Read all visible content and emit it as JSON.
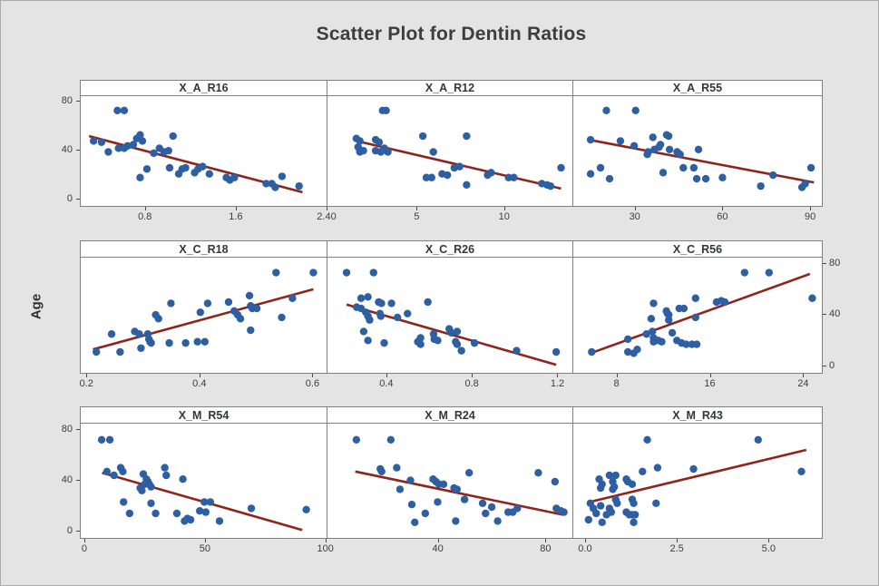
{
  "window": {
    "background": "#e4e4e4",
    "border_color": "#ababab"
  },
  "title": "Scatter Plot for Dentin Ratios",
  "y_axis_label": "Age",
  "colors": {
    "point": "#2e5fa3",
    "fit_line": "#8e241c",
    "panel_background": "#ffffff",
    "panel_border": "#808080",
    "title_text": "#3d3d3d",
    "tick_text": "#3d3d3d"
  },
  "y_axis": {
    "ticks": [
      0,
      40,
      80
    ],
    "range": [
      -6,
      84
    ],
    "sides_by_row": [
      "left",
      "right",
      "left"
    ]
  },
  "chart_data": [
    {
      "type": "scatter",
      "title": "X_A_R16",
      "ylabel": "Age",
      "x_range": [
        0.235,
        2.4
      ],
      "x_ticks": [
        {
          "v": 0.8,
          "label": "0.8"
        },
        {
          "v": 1.6,
          "label": "1.6"
        },
        {
          "v": 2.4,
          "label": "2.40"
        }
      ],
      "points": [
        [
          0.55,
          73
        ],
        [
          0.61,
          73
        ],
        [
          0.34,
          48
        ],
        [
          0.41,
          47
        ],
        [
          0.47,
          39
        ],
        [
          0.56,
          42
        ],
        [
          0.61,
          42
        ],
        [
          0.64,
          44
        ],
        [
          0.69,
          45
        ],
        [
          0.72,
          50
        ],
        [
          0.75,
          53
        ],
        [
          0.77,
          48
        ],
        [
          0.87,
          38
        ],
        [
          0.92,
          42
        ],
        [
          0.96,
          39
        ],
        [
          1.0,
          40
        ],
        [
          1.04,
          52
        ],
        [
          0.75,
          18
        ],
        [
          0.81,
          25
        ],
        [
          1.01,
          26
        ],
        [
          1.09,
          21
        ],
        [
          1.12,
          25
        ],
        [
          1.15,
          26
        ],
        [
          1.23,
          22
        ],
        [
          1.26,
          25
        ],
        [
          1.3,
          27
        ],
        [
          1.36,
          21
        ],
        [
          1.51,
          18
        ],
        [
          1.54,
          16
        ],
        [
          1.58,
          18
        ],
        [
          1.86,
          13
        ],
        [
          1.91,
          13
        ],
        [
          1.94,
          10
        ],
        [
          2.0,
          19
        ],
        [
          2.15,
          11
        ]
      ],
      "fit_line": [
        [
          0.3,
          52
        ],
        [
          2.18,
          6
        ]
      ]
    },
    {
      "type": "scatter",
      "title": "X_A_R12",
      "ylabel": "Age",
      "x_range": [
        -0.1,
        13.9
      ],
      "x_ticks": [
        {
          "v": 5,
          "label": "5"
        },
        {
          "v": 10,
          "label": "10"
        }
      ],
      "points": [
        [
          3.0,
          73
        ],
        [
          3.2,
          73
        ],
        [
          1.5,
          50
        ],
        [
          1.7,
          48
        ],
        [
          1.6,
          43
        ],
        [
          1.7,
          39
        ],
        [
          1.9,
          40
        ],
        [
          2.6,
          49
        ],
        [
          2.8,
          47
        ],
        [
          2.6,
          40
        ],
        [
          2.9,
          39
        ],
        [
          3.1,
          42
        ],
        [
          3.3,
          39
        ],
        [
          5.3,
          52
        ],
        [
          5.9,
          39
        ],
        [
          5.5,
          18
        ],
        [
          5.8,
          18
        ],
        [
          6.4,
          21
        ],
        [
          6.7,
          20
        ],
        [
          7.1,
          26
        ],
        [
          7.4,
          27
        ],
        [
          7.8,
          52
        ],
        [
          7.8,
          12
        ],
        [
          9.0,
          20
        ],
        [
          9.2,
          22
        ],
        [
          10.2,
          18
        ],
        [
          10.5,
          18
        ],
        [
          12.1,
          13
        ],
        [
          12.4,
          12
        ],
        [
          12.6,
          11
        ],
        [
          13.2,
          26
        ]
      ],
      "fit_line": [
        [
          1.5,
          48
        ],
        [
          13.2,
          9
        ]
      ]
    },
    {
      "type": "scatter",
      "title": "X_A_R55",
      "ylabel": "Age",
      "x_range": [
        9,
        94
      ],
      "x_ticks": [
        {
          "v": 30,
          "label": "30"
        },
        {
          "v": 60,
          "label": "60"
        },
        {
          "v": 90,
          "label": "90"
        }
      ],
      "points": [
        [
          20,
          73
        ],
        [
          30,
          73
        ],
        [
          14.6,
          49
        ],
        [
          24.8,
          48
        ],
        [
          29.5,
          44
        ],
        [
          35.9,
          51
        ],
        [
          34.3,
          39
        ],
        [
          34,
          37
        ],
        [
          36.4,
          41
        ],
        [
          38,
          43
        ],
        [
          38.5,
          45
        ],
        [
          40.6,
          53
        ],
        [
          41.3,
          52
        ],
        [
          41.6,
          41
        ],
        [
          44.2,
          39
        ],
        [
          45.2,
          37
        ],
        [
          51.5,
          41
        ],
        [
          46.3,
          26
        ],
        [
          49.9,
          26
        ],
        [
          39.4,
          22
        ],
        [
          14.6,
          21
        ],
        [
          18,
          26
        ],
        [
          21.1,
          17
        ],
        [
          50.9,
          17
        ],
        [
          54,
          17
        ],
        [
          59.7,
          18
        ],
        [
          72.8,
          11
        ],
        [
          77,
          20
        ],
        [
          86.9,
          10
        ],
        [
          88,
          13
        ],
        [
          90,
          26
        ]
      ],
      "fit_line": [
        [
          14,
          49
        ],
        [
          91,
          14
        ]
      ]
    },
    {
      "type": "scatter",
      "title": "X_C_R18",
      "ylabel": "Age",
      "x_range": [
        0.19,
        0.625
      ],
      "x_ticks": [
        {
          "v": 0.2,
          "label": "0.2"
        },
        {
          "v": 0.4,
          "label": "0.4"
        },
        {
          "v": 0.6,
          "label": "0.6"
        }
      ],
      "points": [
        [
          0.216,
          11
        ],
        [
          0.243,
          25
        ],
        [
          0.258,
          11
        ],
        [
          0.284,
          27
        ],
        [
          0.292,
          25
        ],
        [
          0.295,
          14
        ],
        [
          0.307,
          25
        ],
        [
          0.309,
          21
        ],
        [
          0.311,
          19
        ],
        [
          0.313,
          18
        ],
        [
          0.321,
          40
        ],
        [
          0.326,
          37
        ],
        [
          0.348,
          49
        ],
        [
          0.345,
          18
        ],
        [
          0.374,
          18
        ],
        [
          0.395,
          19
        ],
        [
          0.4,
          42
        ],
        [
          0.408,
          19
        ],
        [
          0.413,
          49
        ],
        [
          0.45,
          50
        ],
        [
          0.46,
          43
        ],
        [
          0.466,
          40
        ],
        [
          0.471,
          37
        ],
        [
          0.487,
          55
        ],
        [
          0.489,
          47
        ],
        [
          0.492,
          45
        ],
        [
          0.5,
          45
        ],
        [
          0.489,
          28
        ],
        [
          0.534,
          73
        ],
        [
          0.544,
          38
        ],
        [
          0.563,
          53
        ],
        [
          0.6,
          73
        ]
      ],
      "fit_line": [
        [
          0.21,
          13
        ],
        [
          0.6,
          60
        ]
      ]
    },
    {
      "type": "scatter",
      "title": "X_C_R26",
      "ylabel": "Age",
      "x_range": [
        0.125,
        1.27
      ],
      "x_ticks": [
        {
          "v": 0.4,
          "label": "0.4"
        },
        {
          "v": 0.8,
          "label": "0.8"
        },
        {
          "v": 1.2,
          "label": "1.2"
        }
      ],
      "points": [
        [
          0.21,
          73
        ],
        [
          0.336,
          73
        ],
        [
          0.278,
          53
        ],
        [
          0.31,
          54
        ],
        [
          0.257,
          46
        ],
        [
          0.278,
          45
        ],
        [
          0.3,
          42
        ],
        [
          0.31,
          39
        ],
        [
          0.318,
          36
        ],
        [
          0.36,
          50
        ],
        [
          0.373,
          49
        ],
        [
          0.366,
          41
        ],
        [
          0.37,
          39
        ],
        [
          0.42,
          49
        ],
        [
          0.448,
          38
        ],
        [
          0.29,
          27
        ],
        [
          0.31,
          20
        ],
        [
          0.386,
          18
        ],
        [
          0.495,
          41
        ],
        [
          0.543,
          19
        ],
        [
          0.556,
          17
        ],
        [
          0.556,
          22
        ],
        [
          0.59,
          50
        ],
        [
          0.617,
          25
        ],
        [
          0.62,
          21
        ],
        [
          0.636,
          20
        ],
        [
          0.69,
          29
        ],
        [
          0.7,
          26
        ],
        [
          0.727,
          27
        ],
        [
          0.72,
          19
        ],
        [
          0.727,
          17
        ],
        [
          0.747,
          12
        ],
        [
          0.808,
          18
        ],
        [
          1.005,
          12
        ],
        [
          1.19,
          11
        ]
      ],
      "fit_line": [
        [
          0.21,
          48
        ],
        [
          1.19,
          1
        ]
      ]
    },
    {
      "type": "scatter",
      "title": "X_C_R56",
      "ylabel": "Age",
      "x_range": [
        4.3,
        25.6
      ],
      "x_ticks": [
        {
          "v": 8,
          "label": "8"
        },
        {
          "v": 16,
          "label": "16"
        },
        {
          "v": 24,
          "label": "24"
        }
      ],
      "points": [
        [
          5.8,
          11
        ],
        [
          8.9,
          21
        ],
        [
          8.9,
          11
        ],
        [
          9.4,
          10
        ],
        [
          9.7,
          13
        ],
        [
          10.5,
          25
        ],
        [
          10.9,
          37
        ],
        [
          11.1,
          49
        ],
        [
          11,
          27
        ],
        [
          11.1,
          22
        ],
        [
          11.1,
          19
        ],
        [
          11.5,
          20
        ],
        [
          11.8,
          19
        ],
        [
          12.2,
          43
        ],
        [
          12.3,
          41
        ],
        [
          12.4,
          40
        ],
        [
          12.4,
          36
        ],
        [
          12.7,
          26
        ],
        [
          13.1,
          20
        ],
        [
          13.3,
          45
        ],
        [
          13.7,
          45
        ],
        [
          13.5,
          18
        ],
        [
          13.9,
          17
        ],
        [
          14.4,
          17
        ],
        [
          14.7,
          53
        ],
        [
          14.7,
          38
        ],
        [
          14.8,
          17
        ],
        [
          16.5,
          50
        ],
        [
          16.9,
          51
        ],
        [
          17.2,
          50
        ],
        [
          18.9,
          73
        ],
        [
          21,
          73
        ],
        [
          24.7,
          53
        ]
      ],
      "fit_line": [
        [
          5.7,
          10
        ],
        [
          24.5,
          72
        ]
      ]
    },
    {
      "type": "scatter",
      "title": "X_M_R54",
      "ylabel": "Age",
      "x_range": [
        -1.5,
        100.5
      ],
      "x_ticks": [
        {
          "v": 0,
          "label": "0"
        },
        {
          "v": 50,
          "label": "50"
        },
        {
          "v": 100,
          "label": "100"
        }
      ],
      "points": [
        [
          6.8,
          72
        ],
        [
          10.2,
          72
        ],
        [
          9,
          47
        ],
        [
          14.7,
          50
        ],
        [
          15.6,
          47
        ],
        [
          11.9,
          44
        ],
        [
          24.1,
          45
        ],
        [
          25.4,
          41
        ],
        [
          26,
          39
        ],
        [
          26.6,
          37
        ],
        [
          24.7,
          37
        ],
        [
          22.8,
          34
        ],
        [
          23.5,
          32
        ],
        [
          27.3,
          35
        ],
        [
          33,
          50
        ],
        [
          33.6,
          44
        ],
        [
          40.5,
          41
        ],
        [
          15.9,
          23
        ],
        [
          18.4,
          14
        ],
        [
          27.3,
          22
        ],
        [
          29.2,
          14
        ],
        [
          38,
          14
        ],
        [
          41.2,
          8
        ],
        [
          42.4,
          10
        ],
        [
          43.7,
          9
        ],
        [
          47.5,
          16
        ],
        [
          50,
          15
        ],
        [
          49.4,
          23
        ],
        [
          51.9,
          23
        ],
        [
          55.7,
          8
        ],
        [
          68.9,
          18
        ],
        [
          91.7,
          17
        ]
      ],
      "fit_line": [
        [
          7,
          46
        ],
        [
          90,
          1
        ]
      ]
    },
    {
      "type": "scatter",
      "title": "X_M_R24",
      "ylabel": "Age",
      "x_range": [
        -1,
        90
      ],
      "x_ticks": [
        {
          "v": 40,
          "label": "40"
        },
        {
          "v": 80,
          "label": "80"
        }
      ],
      "points": [
        [
          9.4,
          72
        ],
        [
          22.2,
          72
        ],
        [
          18.3,
          49
        ],
        [
          18.8,
          47
        ],
        [
          24.4,
          50
        ],
        [
          25.6,
          33
        ],
        [
          29.5,
          40
        ],
        [
          30,
          21
        ],
        [
          31.1,
          7
        ],
        [
          35,
          14
        ],
        [
          37.9,
          41
        ],
        [
          39,
          39
        ],
        [
          40.1,
          37
        ],
        [
          39.6,
          23
        ],
        [
          41.8,
          37
        ],
        [
          45.7,
          34
        ],
        [
          46.8,
          33
        ],
        [
          46.3,
          8
        ],
        [
          51.3,
          46
        ],
        [
          49.6,
          25
        ],
        [
          56.3,
          22
        ],
        [
          57.4,
          14
        ],
        [
          59.7,
          19
        ],
        [
          61.9,
          8
        ],
        [
          65.8,
          15
        ],
        [
          67.5,
          15
        ],
        [
          69.2,
          18
        ],
        [
          77,
          46
        ],
        [
          83.2,
          39
        ],
        [
          83.7,
          18
        ],
        [
          85.4,
          16
        ],
        [
          86.5,
          15
        ]
      ],
      "fit_line": [
        [
          9,
          47
        ],
        [
          86,
          13
        ]
      ]
    },
    {
      "type": "scatter",
      "title": "X_M_R43",
      "ylabel": "Age",
      "x_range": [
        -0.32,
        6.45
      ],
      "x_ticks": [
        {
          "v": 0,
          "label": "0.0"
        },
        {
          "v": 2.5,
          "label": "2.5"
        },
        {
          "v": 5,
          "label": "5.0"
        }
      ],
      "points": [
        [
          1.67,
          72
        ],
        [
          4.69,
          72
        ],
        [
          0.36,
          41
        ],
        [
          0.44,
          37
        ],
        [
          0.4,
          34
        ],
        [
          0.64,
          44
        ],
        [
          0.73,
          39
        ],
        [
          0.77,
          35
        ],
        [
          0.73,
          33
        ],
        [
          0.81,
          44
        ],
        [
          1.1,
          41
        ],
        [
          1.14,
          39
        ],
        [
          1.26,
          37
        ],
        [
          1.54,
          47
        ],
        [
          1.95,
          50
        ],
        [
          2.93,
          49
        ],
        [
          0.12,
          22
        ],
        [
          0.2,
          18
        ],
        [
          0.07,
          9
        ],
        [
          0.28,
          14
        ],
        [
          0.4,
          20
        ],
        [
          0.44,
          7
        ],
        [
          0.56,
          13
        ],
        [
          0.64,
          18
        ],
        [
          0.69,
          15
        ],
        [
          0.81,
          25
        ],
        [
          0.85,
          22
        ],
        [
          1.1,
          15
        ],
        [
          1.18,
          13
        ],
        [
          1.26,
          25
        ],
        [
          1.3,
          22
        ],
        [
          1.26,
          13
        ],
        [
          1.34,
          13
        ],
        [
          1.3,
          7
        ],
        [
          1.91,
          22
        ],
        [
          5.87,
          47
        ]
      ],
      "fit_line": [
        [
          0.1,
          23
        ],
        [
          6.0,
          64
        ]
      ]
    }
  ]
}
